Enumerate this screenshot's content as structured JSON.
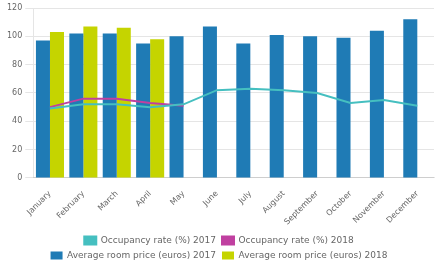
{
  "chart_data": {
    "type": "bar",
    "categories": [
      "January",
      "February",
      "March",
      "April",
      "May",
      "June",
      "July",
      "August",
      "September",
      "October",
      "November",
      "December"
    ],
    "series": [
      {
        "name": "Average room price (euros) 2017",
        "type": "bar",
        "color": "#1f7bb5",
        "values": [
          97,
          102,
          102,
          95,
          100,
          107,
          95,
          101,
          100,
          99,
          104,
          112
        ]
      },
      {
        "name": "Average room price (euros) 2018",
        "type": "bar",
        "color": "#c5d400",
        "values": [
          103,
          107,
          106,
          98,
          null,
          null,
          null,
          null,
          null,
          null,
          null,
          null
        ]
      },
      {
        "name": "Occupancy rate (%) 2017",
        "type": "line",
        "color": "#45bfc0",
        "values": [
          49,
          52,
          52,
          50,
          52,
          62,
          63,
          62,
          60,
          53,
          55,
          51
        ]
      },
      {
        "name": "Occupancy rate (%) 2018",
        "type": "line",
        "color": "#c040a0",
        "values": [
          50,
          56,
          56,
          53,
          51,
          null,
          null,
          null,
          null,
          null,
          null,
          null
        ]
      }
    ],
    "ylim": [
      0,
      120
    ],
    "yticks": [
      0,
      20,
      40,
      60,
      80,
      100,
      120
    ],
    "grid": true,
    "legend": "bottom"
  }
}
